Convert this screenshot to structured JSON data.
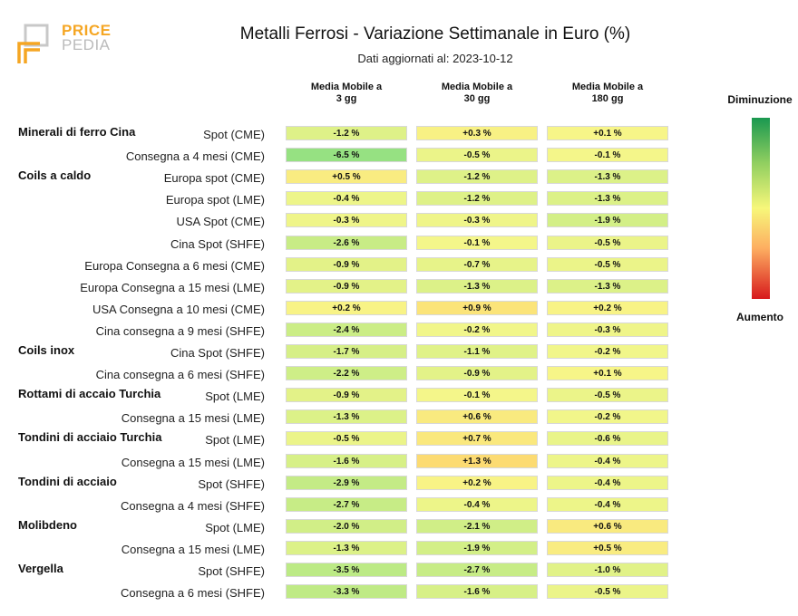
{
  "logo": {
    "line1": "PRICE",
    "line2": "PEDIA"
  },
  "chart_data": {
    "type": "table",
    "title": "Metalli Ferrosi - Variazione Settimanale in Euro (%)",
    "subtitle": "Dati aggiornati al: 2023-10-12",
    "columns": [
      "Media Mobile a\n3 gg",
      "Media Mobile a\n30 gg",
      "Media Mobile a\n180 gg"
    ],
    "legend": {
      "top": "Diminuzione",
      "bottom": "Aumento"
    },
    "rows": [
      {
        "group": "Minerali di ferro Cina",
        "label": "Spot (CME)",
        "values": [
          -1.2,
          0.3,
          0.1
        ]
      },
      {
        "group": "",
        "label": "Consegna a 4 mesi (CME)",
        "values": [
          -6.5,
          -0.5,
          -0.1
        ]
      },
      {
        "group": "Coils a caldo",
        "label": "Europa spot (CME)",
        "values": [
          0.5,
          -1.2,
          -1.3
        ]
      },
      {
        "group": "",
        "label": "Europa spot (LME)",
        "values": [
          -0.4,
          -1.2,
          -1.3
        ]
      },
      {
        "group": "",
        "label": "USA Spot (CME)",
        "values": [
          -0.3,
          -0.3,
          -1.9
        ]
      },
      {
        "group": "",
        "label": "Cina Spot (SHFE)",
        "values": [
          -2.6,
          -0.1,
          -0.5
        ]
      },
      {
        "group": "",
        "label": "Europa Consegna a 6 mesi (CME)",
        "values": [
          -0.9,
          -0.7,
          -0.5
        ]
      },
      {
        "group": "",
        "label": "Europa Consegna a 15 mesi (LME)",
        "values": [
          -0.9,
          -1.3,
          -1.3
        ]
      },
      {
        "group": "",
        "label": "USA Consegna a 10 mesi (CME)",
        "values": [
          0.2,
          0.9,
          0.2
        ]
      },
      {
        "group": "",
        "label": "Cina consegna a 9 mesi (SHFE)",
        "values": [
          -2.4,
          -0.2,
          -0.3
        ]
      },
      {
        "group": "Coils inox",
        "label": "Cina Spot (SHFE)",
        "values": [
          -1.7,
          -1.1,
          -0.2
        ]
      },
      {
        "group": "",
        "label": "Cina consegna a 6 mesi (SHFE)",
        "values": [
          -2.2,
          -0.9,
          0.1
        ]
      },
      {
        "group": "Rottami di accaio Turchia",
        "label": "Spot (LME)",
        "values": [
          -0.9,
          -0.1,
          -0.5
        ]
      },
      {
        "group": "",
        "label": "Consegna a 15 mesi (LME)",
        "values": [
          -1.3,
          0.6,
          -0.2
        ]
      },
      {
        "group": "Tondini di acciaio Turchia",
        "label": "Spot (LME)",
        "values": [
          -0.5,
          0.7,
          -0.6
        ]
      },
      {
        "group": "",
        "label": "Consegna a 15 mesi (LME)",
        "values": [
          -1.6,
          1.3,
          -0.4
        ]
      },
      {
        "group": "Tondini di acciaio",
        "label": "Spot (SHFE)",
        "values": [
          -2.9,
          0.2,
          -0.4
        ]
      },
      {
        "group": "",
        "label": "Consegna a 4 mesi (SHFE)",
        "values": [
          -2.7,
          -0.4,
          -0.4
        ]
      },
      {
        "group": "Molibdeno",
        "label": "Spot (LME)",
        "values": [
          -2.0,
          -2.1,
          0.6
        ]
      },
      {
        "group": "",
        "label": "Consegna a 15 mesi (LME)",
        "values": [
          -1.3,
          -1.9,
          0.5
        ]
      },
      {
        "group": "Vergella",
        "label": "Spot (SHFE)",
        "values": [
          -3.5,
          -2.7,
          -1.0
        ]
      },
      {
        "group": "",
        "label": "Consegna a 6 mesi (SHFE)",
        "values": [
          -3.3,
          -1.6,
          -0.5
        ]
      }
    ]
  }
}
